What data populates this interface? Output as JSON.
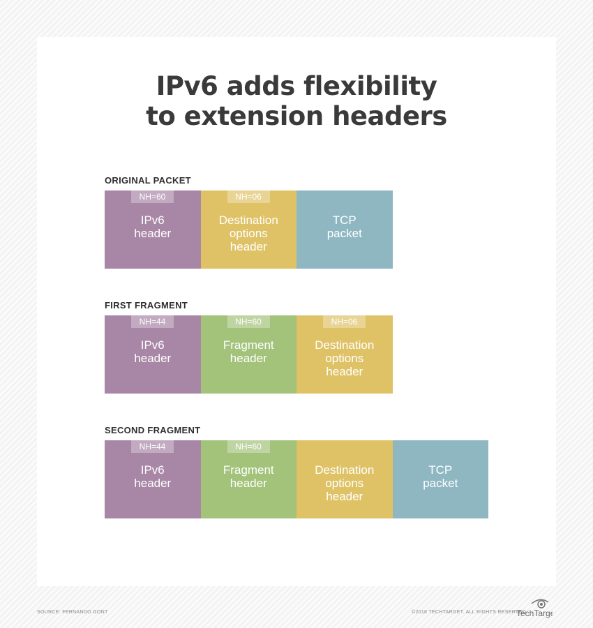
{
  "title": [
    "IPv6 adds flexibility",
    "to extension headers"
  ],
  "colors": {
    "ipv6": "#a886a6",
    "destination": "#dfc266",
    "tcp": "#8eb7c2",
    "fragment": "#a3c27a"
  },
  "sections": [
    {
      "label": "ORIGINAL PACKET",
      "cells": [
        {
          "type": "ipv6",
          "nh": "NH=60",
          "lines": [
            "IPv6",
            "header"
          ]
        },
        {
          "type": "destination",
          "nh": "NH=06",
          "lines": [
            "Destination",
            "options",
            "header"
          ]
        },
        {
          "type": "tcp",
          "nh": "",
          "lines": [
            "TCP",
            "packet"
          ]
        }
      ]
    },
    {
      "label": "FIRST FRAGMENT",
      "cells": [
        {
          "type": "ipv6",
          "nh": "NH=44",
          "lines": [
            "IPv6",
            "header"
          ]
        },
        {
          "type": "fragment",
          "nh": "NH=60",
          "lines": [
            "Fragment",
            "header"
          ]
        },
        {
          "type": "destination",
          "nh": "NH=06",
          "lines": [
            "Destination",
            "options",
            "header"
          ]
        }
      ]
    },
    {
      "label": "SECOND FRAGMENT",
      "cells": [
        {
          "type": "ipv6",
          "nh": "NH=44",
          "lines": [
            "IPv6",
            "header"
          ]
        },
        {
          "type": "fragment",
          "nh": "NH=60",
          "lines": [
            "Fragment",
            "header"
          ]
        },
        {
          "type": "destination",
          "nh": "",
          "lines": [
            "Destination",
            "options",
            "header"
          ]
        },
        {
          "type": "tcp",
          "nh": "",
          "lines": [
            "TCP",
            "packet"
          ]
        }
      ]
    }
  ],
  "footer": {
    "source": "SOURCE: FERNANDO GONT",
    "copyright": "©2018 TECHTARGET. ALL RIGHTS RESERVED",
    "logo": "TechTarget"
  }
}
